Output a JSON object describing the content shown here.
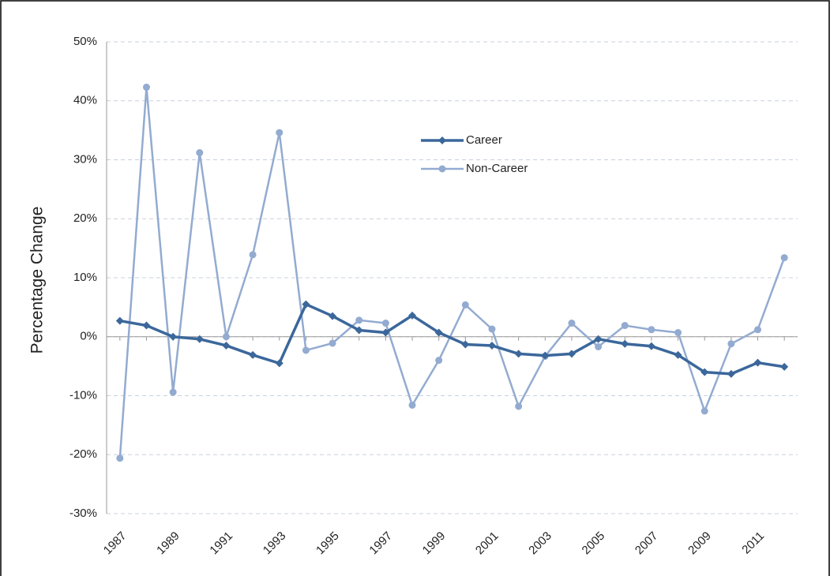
{
  "chart_data": {
    "type": "line",
    "y_label": "Percentage Change",
    "x": [
      1987,
      1988,
      1989,
      1990,
      1991,
      1992,
      1993,
      1994,
      1995,
      1996,
      1997,
      1998,
      1999,
      2000,
      2001,
      2002,
      2003,
      2004,
      2005,
      2006,
      2007,
      2008,
      2009,
      2010,
      2011,
      2012
    ],
    "xlim": [
      1986.5,
      2012.5
    ],
    "xticks": [
      1987,
      1989,
      1991,
      1993,
      1995,
      1997,
      1999,
      2001,
      2003,
      2005,
      2007,
      2009,
      2011
    ],
    "ylim": [
      -30,
      50
    ],
    "yticks": [
      {
        "value": -30,
        "label": "-30%"
      },
      {
        "value": -20,
        "label": "-20%"
      },
      {
        "value": -10,
        "label": "-10%"
      },
      {
        "value": 0,
        "label": "0%"
      },
      {
        "value": 10,
        "label": "10%"
      },
      {
        "value": 20,
        "label": "20%"
      },
      {
        "value": 30,
        "label": "30%"
      },
      {
        "value": 40,
        "label": "40%"
      },
      {
        "value": 50,
        "label": "50%"
      }
    ],
    "grid": true,
    "series": [
      {
        "name": "Career",
        "color": "#3b679b",
        "marker": "diamond",
        "values": [
          2.7,
          1.9,
          0,
          -0.4,
          -1.5,
          -3.1,
          -4.5,
          5.5,
          3.5,
          1.1,
          0.7,
          3.6,
          0.7,
          -1.3,
          -1.5,
          -2.9,
          -3.2,
          -2.9,
          -0.4,
          -1.2,
          -1.6,
          -3.1,
          -6.0,
          -6.3,
          -4.4,
          -5.1
        ]
      },
      {
        "name": "Non-Career",
        "color": "#93abd0",
        "marker": "circle",
        "values": [
          -20.6,
          42.3,
          -9.4,
          31.2,
          0,
          13.9,
          34.6,
          -2.3,
          -1.1,
          2.8,
          2.3,
          -11.6,
          -4.0,
          5.4,
          1.3,
          -11.8,
          -3.3,
          2.3,
          -1.7,
          1.9,
          1.2,
          0.7,
          -12.6,
          -1.2,
          1.2,
          13.4
        ]
      }
    ]
  }
}
